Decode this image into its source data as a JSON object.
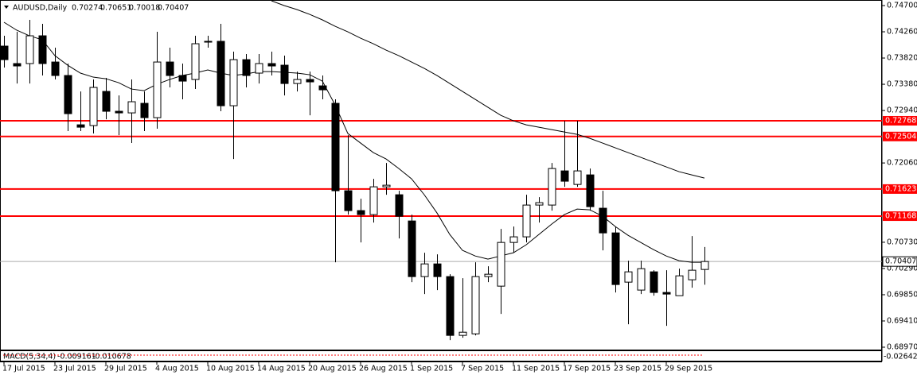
{
  "chart_data": {
    "type": "candlestick",
    "title": "AUDUSD,Daily",
    "categories": [
      "17 Jul 2015",
      null,
      null,
      null,
      "23 Jul 2015",
      null,
      null,
      null,
      "29 Jul 2015",
      null,
      null,
      null,
      "4 Aug 2015",
      null,
      null,
      null,
      "10 Aug 2015",
      null,
      null,
      null,
      "14 Aug 2015",
      null,
      null,
      null,
      "20 Aug 2015",
      null,
      null,
      null,
      "26 Aug 2015",
      null,
      null,
      null,
      "1 Sep 2015",
      null,
      null,
      null,
      "7 Sep 2015",
      null,
      null,
      null,
      "11 Sep 2015",
      null,
      null,
      null,
      "17 Sep 2015",
      null,
      null,
      null,
      "23 Sep 2015",
      null,
      null,
      null,
      "29 Sep 2015",
      null,
      null,
      null
    ],
    "open": [
      0.7402,
      0.73727,
      0.73727,
      0.74193,
      0.73753,
      0.73527,
      0.727,
      0.72687,
      0.7326,
      0.72927,
      0.729,
      0.7306,
      0.7282,
      0.73753,
      0.73527,
      0.7346,
      0.741,
      0.741,
      0.7302,
      0.73793,
      0.73567,
      0.73727,
      0.737,
      0.73393,
      0.7346,
      0.73353,
      0.7306,
      0.71594,
      0.71261,
      0.71194,
      0.7166,
      0.71527,
      0.71087,
      0.70154,
      0.70367,
      0.70154,
      0.69168,
      0.69194,
      0.70154,
      0.69994,
      0.70727,
      0.70821,
      0.71354,
      0.71354,
      0.71927,
      0.717,
      0.7186,
      0.71301,
      0.70887,
      0.70061,
      0.69928,
      0.70234,
      0.69888,
      0.69834,
      0.70101,
      0.70274
    ],
    "high": [
      0.74193,
      0.7426,
      0.7446,
      0.74393,
      0.73993,
      0.73727,
      0.7326,
      0.7346,
      0.73487,
      0.73193,
      0.7346,
      0.7326,
      0.7426,
      0.73993,
      0.73727,
      0.74193,
      0.74193,
      0.74393,
      0.73927,
      0.73887,
      0.73887,
      0.73927,
      0.7386,
      0.73593,
      0.73593,
      0.73527,
      0.73127,
      0.72527,
      0.7146,
      0.71794,
      0.7206,
      0.71594,
      0.71194,
      0.70554,
      0.70527,
      0.70194,
      0.70127,
      0.70394,
      0.70327,
      0.70954,
      0.70994,
      0.71527,
      0.71487,
      0.7206,
      0.72767,
      0.72767,
      0.71967,
      0.71594,
      0.70994,
      0.70421,
      0.70421,
      0.70261,
      0.70261,
      0.70287,
      0.70834,
      0.70651
    ],
    "low": [
      0.7366,
      0.73393,
      0.73393,
      0.73527,
      0.7346,
      0.72594,
      0.72594,
      0.72554,
      0.72793,
      0.72527,
      0.72394,
      0.72594,
      0.72634,
      0.73327,
      0.73127,
      0.733,
      0.73993,
      0.72927,
      0.72127,
      0.73327,
      0.73393,
      0.73527,
      0.73193,
      0.7326,
      0.7286,
      0.73127,
      0.70394,
      0.71194,
      0.70727,
      0.71061,
      0.71527,
      0.70794,
      0.70061,
      0.69861,
      0.69928,
      0.69088,
      0.69128,
      0.69168,
      0.70061,
      0.69528,
      0.70554,
      0.70727,
      0.71061,
      0.71261,
      0.7166,
      0.7166,
      0.71261,
      0.70594,
      0.69888,
      0.69354,
      0.69861,
      0.69834,
      0.69328,
      0.69834,
      0.69968,
      0.70018
    ],
    "close": [
      0.73793,
      0.73687,
      0.74193,
      0.73727,
      0.73527,
      0.72887,
      0.7266,
      0.73327,
      0.72927,
      0.729,
      0.73087,
      0.7282,
      0.73753,
      0.73527,
      0.73433,
      0.7406,
      0.74087,
      0.7302,
      0.73793,
      0.73527,
      0.73727,
      0.73687,
      0.73393,
      0.7346,
      0.7342,
      0.73287,
      0.71594,
      0.71261,
      0.71194,
      0.7166,
      0.71687,
      0.71167,
      0.70154,
      0.70367,
      0.70154,
      0.69168,
      0.69221,
      0.70154,
      0.70194,
      0.70727,
      0.70821,
      0.71354,
      0.71394,
      0.71967,
      0.71754,
      0.71927,
      0.71327,
      0.70887,
      0.70021,
      0.70234,
      0.70287,
      0.69888,
      0.69861,
      0.70167,
      0.70261,
      0.70407
    ],
    "up_color": "#ffffff",
    "down_color": "#000000",
    "lines": [
      {
        "color": "#000000",
        "values": [
          0.7442,
          0.74287,
          0.74193,
          0.74127,
          0.7386,
          0.737,
          0.73567,
          0.735,
          0.73473,
          0.73407,
          0.733,
          0.73273,
          0.7338,
          0.7346,
          0.73527,
          0.73567,
          0.7362,
          0.73567,
          0.73527,
          0.73553,
          0.73593,
          0.73593,
          0.7358,
          0.73567,
          0.7354,
          0.73433,
          0.73033,
          0.72554,
          0.72394,
          0.72234,
          0.72127,
          0.71967,
          0.71794,
          0.71527,
          0.71221,
          0.70861,
          0.70594,
          0.705,
          0.70447,
          0.705,
          0.70554,
          0.70687,
          0.70861,
          0.71034,
          0.71194,
          0.71287,
          0.71274,
          0.71167,
          0.70994,
          0.70847,
          0.70727,
          0.70607,
          0.705,
          0.70421,
          0.70394,
          0.70394
        ]
      },
      {
        "color": "#000000",
        "values": [
          null,
          null,
          null,
          null,
          null,
          null,
          null,
          null,
          null,
          null,
          null,
          null,
          null,
          null,
          null,
          null,
          null,
          null,
          null,
          null,
          null,
          0.7478,
          0.747,
          0.74633,
          0.74553,
          0.7446,
          0.74353,
          0.7426,
          0.74153,
          0.7406,
          0.73953,
          0.7386,
          0.73753,
          0.73647,
          0.73527,
          0.73393,
          0.7326,
          0.73127,
          0.72993,
          0.7286,
          0.72767,
          0.727,
          0.7266,
          0.7262,
          0.7258,
          0.7254,
          0.72473,
          0.72394,
          0.72314,
          0.72234,
          0.72154,
          0.72074,
          0.71994,
          0.71914,
          0.7186,
          0.71807
        ]
      }
    ],
    "levels": [
      {
        "value": 0.72768,
        "color": "#ff0000"
      },
      {
        "value": 0.72504,
        "color": "#ff0000"
      },
      {
        "value": 0.71623,
        "color": "#ff0000"
      },
      {
        "value": 0.71168,
        "color": "#ff0000"
      }
    ],
    "ylim": [
      0.6897,
      0.747
    ],
    "yticks": [
      {
        "value": 0.747,
        "label": "0.74700"
      },
      {
        "value": 0.7426,
        "label": "0.74260"
      },
      {
        "value": 0.7382,
        "label": "0.73820"
      },
      {
        "value": 0.7338,
        "label": "0.73380"
      },
      {
        "value": 0.7294,
        "label": "0.72940"
      },
      {
        "value": 0.7206,
        "label": "0.72060"
      },
      {
        "value": 0.7073,
        "label": "0.70730"
      },
      {
        "value": 0.7029,
        "label": "0.70290"
      },
      {
        "value": 0.6985,
        "label": "0.69850"
      },
      {
        "value": 0.6941,
        "label": "0.69410"
      },
      {
        "value": 0.6897,
        "label": "0.68970"
      }
    ],
    "macd": {
      "title": "MACD(5,34,4)",
      "main": -0.009161,
      "signal": -0.010678,
      "color": "#ff0000",
      "yticks": [
        -0.026423
      ]
    }
  }
}
